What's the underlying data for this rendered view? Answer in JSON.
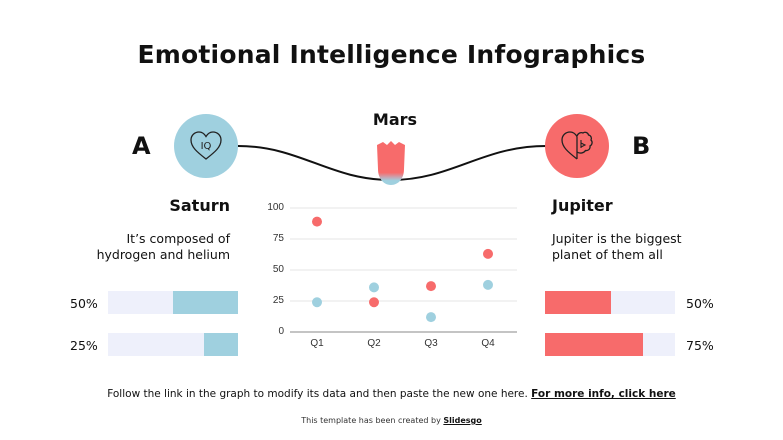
{
  "title": "Emotional Intelligence Infographics",
  "colors": {
    "blue": "#9fd0df",
    "red": "#f76b6b",
    "track": "#eef0fb",
    "text": "#111111"
  },
  "left": {
    "letter": "A",
    "icon": "heart-iq-icon",
    "name": "Saturn",
    "desc_line1": "It’s composed of",
    "desc_line2": "hydrogen and helium",
    "bars": [
      {
        "label": "50%",
        "value": 50
      },
      {
        "label": "25%",
        "value": 25
      }
    ]
  },
  "center": {
    "label": "Mars",
    "icon": "tulip-icon"
  },
  "right": {
    "letter": "B",
    "icon": "heart-brain-icon",
    "name": "Jupiter",
    "desc_line1": "Jupiter is the biggest",
    "desc_line2": "planet of them all",
    "bars": [
      {
        "label": "50%",
        "value": 50
      },
      {
        "label": "75%",
        "value": 75
      }
    ]
  },
  "chart_data": {
    "type": "scatter",
    "title": "",
    "xlabel": "",
    "ylabel": "",
    "categories": [
      "Q1",
      "Q2",
      "Q3",
      "Q4"
    ],
    "ylim": [
      0,
      100
    ],
    "yticks": [
      0,
      25,
      50,
      75,
      100
    ],
    "grid": true,
    "legend": "none",
    "series": [
      {
        "name": "Red series",
        "color": "#f76b6b",
        "values": [
          89,
          24,
          37,
          63
        ]
      },
      {
        "name": "Blue series",
        "color": "#9fd0df",
        "values": [
          24,
          36,
          12,
          38
        ]
      }
    ]
  },
  "footer": {
    "text": "Follow the link in the graph to modify its data and then paste the new one here.",
    "link": "For more info, click here",
    "credit_text": "This template has been created by",
    "credit_link": "Slidesgo"
  }
}
